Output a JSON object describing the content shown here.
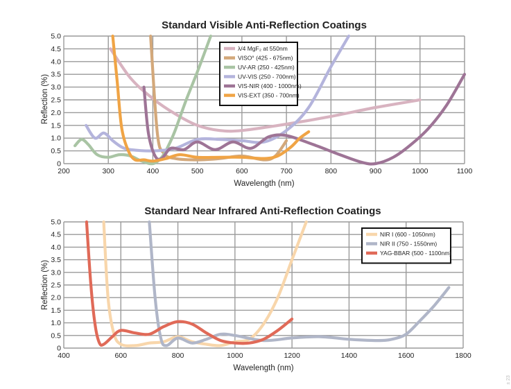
{
  "chart_data": [
    {
      "type": "line",
      "title": "Standard Visible Anti-Reflection Coatings",
      "xlabel": "Wavelength (nm)",
      "ylabel": "Reflection (%)",
      "xlim": [
        200,
        1100
      ],
      "ylim": [
        0,
        5
      ],
      "xticks": [
        200,
        300,
        400,
        500,
        600,
        700,
        800,
        900,
        1000,
        1100
      ],
      "yticks": [
        "0",
        "0.5",
        "1.0",
        "1.5",
        "2.0",
        "2.5",
        "3.0",
        "3.5",
        "4.0",
        "4.5",
        "5.0"
      ],
      "grid": true,
      "legend_position": "top-center",
      "series": [
        {
          "name": "λ/4 MgF₂ at 550nm",
          "color": "#d8b3c0",
          "x": [
            305,
            350,
            400,
            450,
            500,
            550,
            600,
            700,
            800,
            900,
            1000
          ],
          "y": [
            4.5,
            3.35,
            2.55,
            1.95,
            1.5,
            1.3,
            1.3,
            1.55,
            1.85,
            2.2,
            2.5
          ]
        },
        {
          "name": "VISO° (425 - 675nm)",
          "color": "#d3a87a",
          "x": [
            395,
            410,
            425,
            450,
            500,
            550,
            600,
            650,
            675,
            700
          ],
          "y": [
            5.0,
            1.2,
            0.4,
            0.2,
            0.15,
            0.2,
            0.3,
            0.15,
            0.3,
            0.9
          ]
        },
        {
          "name": "UV-AR (250 - 425nm)",
          "color": "#a9c4a4",
          "x": [
            225,
            240,
            255,
            275,
            300,
            325,
            350,
            375,
            400,
            420,
            435,
            450,
            475,
            500,
            530
          ],
          "y": [
            0.7,
            0.95,
            0.75,
            0.35,
            0.25,
            0.35,
            0.3,
            0.1,
            0.0,
            0.25,
            0.7,
            1.3,
            2.5,
            3.6,
            5.0
          ]
        },
        {
          "name": "UV-VIS (250 - 700nm)",
          "color": "#b4b4dc",
          "x": [
            250,
            270,
            290,
            310,
            330,
            350,
            400,
            450,
            500,
            550,
            600,
            650,
            700,
            750,
            800,
            840
          ],
          "y": [
            1.5,
            1.0,
            1.2,
            0.9,
            0.65,
            0.55,
            0.5,
            0.6,
            0.95,
            0.95,
            0.9,
            0.85,
            1.3,
            2.2,
            3.8,
            5.0
          ]
        },
        {
          "name": "VIS-NIR (400 - 1000nm)",
          "color": "#9e7496",
          "x": [
            380,
            390,
            405,
            420,
            440,
            470,
            500,
            540,
            580,
            620,
            660,
            700,
            760,
            820,
            870,
            900,
            940,
            980,
            1020,
            1060,
            1100
          ],
          "y": [
            3.0,
            1.2,
            0.3,
            0.2,
            0.6,
            0.55,
            0.85,
            0.55,
            0.85,
            0.6,
            1.05,
            1.1,
            0.75,
            0.35,
            0.05,
            0.0,
            0.25,
            0.75,
            1.4,
            2.3,
            3.5
          ]
        },
        {
          "name": "VIS-EXT (350 - 700nm)",
          "color": "#f0a445",
          "x": [
            310,
            320,
            330,
            345,
            360,
            380,
            400,
            430,
            460,
            500,
            550,
            600,
            650,
            680,
            710,
            730,
            750
          ],
          "y": [
            5.0,
            3.2,
            1.4,
            0.5,
            0.15,
            0.15,
            0.1,
            0.2,
            0.35,
            0.25,
            0.25,
            0.25,
            0.2,
            0.3,
            0.65,
            1.0,
            1.25
          ]
        }
      ]
    },
    {
      "type": "line",
      "title": "Standard Near Infrared Anti-Reflection Coatings",
      "xlabel": "Wavelength (nm)",
      "ylabel": "Reflection (%)",
      "xlim": [
        400,
        1800
      ],
      "ylim": [
        0,
        5
      ],
      "xticks": [
        400,
        600,
        800,
        1000,
        1200,
        1400,
        1600,
        1800
      ],
      "yticks": [
        "0",
        "0.5",
        "1.0",
        "1.5",
        "2.0",
        "2.5",
        "3.0",
        "3.5",
        "4.0",
        "4.5",
        "5.0"
      ],
      "grid": true,
      "legend_position": "top-right",
      "series": [
        {
          "name": "NIR I (600 - 1050nm)",
          "color": "#f8d6ab",
          "x": [
            540,
            555,
            575,
            600,
            650,
            700,
            750,
            800,
            850,
            900,
            950,
            1000,
            1050,
            1100,
            1150,
            1200,
            1250
          ],
          "y": [
            5.0,
            2.0,
            0.6,
            0.15,
            0.1,
            0.2,
            0.25,
            0.45,
            0.25,
            0.15,
            0.1,
            0.25,
            0.35,
            0.95,
            2.0,
            3.5,
            5.0
          ]
        },
        {
          "name": "NIR II (750 - 1550nm)",
          "color": "#b0b6c8",
          "x": [
            700,
            720,
            740,
            760,
            800,
            850,
            900,
            950,
            1000,
            1100,
            1200,
            1300,
            1400,
            1500,
            1550,
            1600,
            1650,
            1700,
            1750
          ],
          "y": [
            5.0,
            2.0,
            0.4,
            0.1,
            0.4,
            0.2,
            0.35,
            0.55,
            0.5,
            0.3,
            0.4,
            0.45,
            0.35,
            0.3,
            0.35,
            0.55,
            1.1,
            1.7,
            2.4
          ]
        },
        {
          "name": "YAG-BBAR (500 - 1100nm)",
          "color": "#e06a58",
          "x": [
            480,
            495,
            510,
            525,
            540,
            570,
            600,
            650,
            700,
            750,
            800,
            850,
            900,
            950,
            1000,
            1050,
            1100,
            1150,
            1200
          ],
          "y": [
            5.0,
            2.5,
            0.9,
            0.2,
            0.15,
            0.45,
            0.7,
            0.6,
            0.55,
            0.85,
            1.05,
            0.95,
            0.6,
            0.3,
            0.2,
            0.2,
            0.35,
            0.7,
            1.15
          ]
        }
      ]
    }
  ],
  "corner_mark": "± 23"
}
